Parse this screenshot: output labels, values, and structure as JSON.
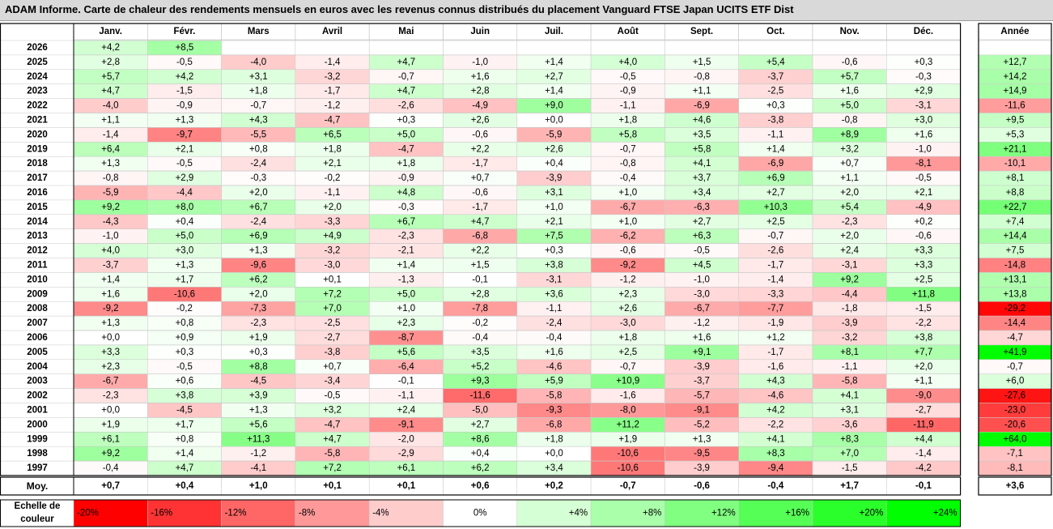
{
  "title": "ADAM Informe. Carte de chaleur des rendements mensuels en euros avec les revenus connus distribués du placement Vanguard FTSE Japan UCITS ETF Dist",
  "chart_data": {
    "type": "heatmap",
    "months": [
      "Janv.",
      "Févr.",
      "Mars",
      "Avril",
      "Mai",
      "Juin",
      "Juil.",
      "Août",
      "Sept.",
      "Oct.",
      "Nov.",
      "Déc."
    ],
    "year_header": "Année",
    "rows": [
      {
        "year": "2026",
        "months": [
          "+4,2",
          "+8,5",
          "",
          "",
          "",
          "",
          "",
          "",
          "",
          "",
          "",
          ""
        ],
        "annual": ""
      },
      {
        "year": "2025",
        "months": [
          "+2,8",
          "-0,5",
          "-4,0",
          "-1,4",
          "+4,7",
          "-1,0",
          "+1,4",
          "+4,0",
          "+1,5",
          "+5,4",
          "-0,6",
          "+0,3"
        ],
        "annual": "+12,7"
      },
      {
        "year": "2024",
        "months": [
          "+5,7",
          "+4,2",
          "+3,1",
          "-3,2",
          "-0,7",
          "+1,6",
          "+2,7",
          "-0,5",
          "-0,8",
          "-3,7",
          "+5,7",
          "-0,3"
        ],
        "annual": "+14,2"
      },
      {
        "year": "2023",
        "months": [
          "+4,7",
          "-1,5",
          "+1,8",
          "-1,7",
          "+4,7",
          "+2,8",
          "+1,4",
          "-0,9",
          "+1,1",
          "-2,5",
          "+1,6",
          "+2,9"
        ],
        "annual": "+14,9"
      },
      {
        "year": "2022",
        "months": [
          "-4,0",
          "-0,9",
          "-0,7",
          "-1,2",
          "-2,6",
          "-4,9",
          "+9,0",
          "-1,1",
          "-6,9",
          "+0,3",
          "+5,0",
          "-3,1"
        ],
        "annual": "-11,6"
      },
      {
        "year": "2021",
        "months": [
          "+1,1",
          "+1,3",
          "+4,3",
          "-4,7",
          "+0,3",
          "+2,6",
          "+0,0",
          "+1,8",
          "+4,6",
          "-3,8",
          "-0,8",
          "+3,0"
        ],
        "annual": "+9,5"
      },
      {
        "year": "2020",
        "months": [
          "-1,4",
          "-9,7",
          "-5,5",
          "+6,5",
          "+5,0",
          "-0,6",
          "-5,9",
          "+5,8",
          "+3,5",
          "-1,1",
          "+8,9",
          "+1,6"
        ],
        "annual": "+5,3"
      },
      {
        "year": "2019",
        "months": [
          "+6,4",
          "+2,1",
          "+0,8",
          "+1,8",
          "-4,7",
          "+2,2",
          "+2,6",
          "-0,7",
          "+5,8",
          "+1,4",
          "+3,2",
          "-1,0"
        ],
        "annual": "+21,1"
      },
      {
        "year": "2018",
        "months": [
          "+1,3",
          "-0,5",
          "-2,4",
          "+2,1",
          "+1,8",
          "-1,7",
          "+0,4",
          "-0,8",
          "+4,1",
          "-6,9",
          "+0,7",
          "-8,1"
        ],
        "annual": "-10,1"
      },
      {
        "year": "2017",
        "months": [
          "-0,8",
          "+2,9",
          "-0,3",
          "-0,2",
          "-0,9",
          "+0,7",
          "-3,9",
          "-0,4",
          "+3,7",
          "+6,9",
          "+1,1",
          "-0,5"
        ],
        "annual": "+8,1"
      },
      {
        "year": "2016",
        "months": [
          "-5,9",
          "-4,4",
          "+2,0",
          "-1,1",
          "+4,8",
          "-0,6",
          "+3,1",
          "+1,0",
          "+3,4",
          "+2,7",
          "+2,0",
          "+2,1"
        ],
        "annual": "+8,8"
      },
      {
        "year": "2015",
        "months": [
          "+9,2",
          "+8,0",
          "+6,7",
          "+2,0",
          "-0,3",
          "-1,7",
          "+1,0",
          "-6,7",
          "-6,3",
          "+10,3",
          "+5,4",
          "-4,9"
        ],
        "annual": "+22,7"
      },
      {
        "year": "2014",
        "months": [
          "-4,3",
          "+0,4",
          "-2,4",
          "-3,3",
          "+6,7",
          "+4,7",
          "+2,1",
          "+1,0",
          "+2,7",
          "+2,5",
          "-2,3",
          "+0,2"
        ],
        "annual": "+7,4"
      },
      {
        "year": "2013",
        "months": [
          "-1,0",
          "+5,0",
          "+6,9",
          "+4,9",
          "-2,3",
          "-6,8",
          "+7,5",
          "-6,2",
          "+6,3",
          "-0,7",
          "+2,0",
          "-0,6"
        ],
        "annual": "+14,4"
      },
      {
        "year": "2012",
        "months": [
          "+4,0",
          "+3,0",
          "+1,3",
          "-3,2",
          "-2,1",
          "+2,2",
          "+0,3",
          "-0,6",
          "-0,5",
          "-2,6",
          "+2,4",
          "+3,3"
        ],
        "annual": "+7,5"
      },
      {
        "year": "2011",
        "months": [
          "-3,7",
          "+1,3",
          "-9,6",
          "-3,0",
          "+1,4",
          "+1,5",
          "+3,8",
          "-9,2",
          "+4,5",
          "-1,7",
          "-3,1",
          "+3,3"
        ],
        "annual": "-14,8"
      },
      {
        "year": "2010",
        "months": [
          "+1,4",
          "+1,7",
          "+6,2",
          "+0,1",
          "-1,3",
          "-0,1",
          "-3,1",
          "-1,2",
          "-1,0",
          "-1,4",
          "+9,2",
          "+2,5"
        ],
        "annual": "+13,1"
      },
      {
        "year": "2009",
        "months": [
          "+1,6",
          "-10,6",
          "+2,0",
          "+7,2",
          "+5,0",
          "+2,8",
          "+3,6",
          "+2,3",
          "-3,0",
          "-3,3",
          "-4,4",
          "+11,8"
        ],
        "annual": "+13,8"
      },
      {
        "year": "2008",
        "months": [
          "-9,2",
          "-0,2",
          "-7,3",
          "+7,0",
          "+1,0",
          "-7,8",
          "-1,1",
          "+2,6",
          "-6,7",
          "-7,7",
          "-1,8",
          "-1,5"
        ],
        "annual": "-29,2"
      },
      {
        "year": "2007",
        "months": [
          "+1,3",
          "+0,8",
          "-2,3",
          "-2,5",
          "+2,3",
          "-0,2",
          "-2,4",
          "-3,0",
          "-1,2",
          "-1,9",
          "-3,9",
          "-2,2"
        ],
        "annual": "-14,4"
      },
      {
        "year": "2006",
        "months": [
          "+0,0",
          "+0,9",
          "+1,9",
          "-2,7",
          "-8,7",
          "-0,4",
          "-0,4",
          "+1,8",
          "+1,6",
          "+1,2",
          "-3,2",
          "+3,8"
        ],
        "annual": "-4,7"
      },
      {
        "year": "2005",
        "months": [
          "+3,3",
          "+0,3",
          "+0,3",
          "-3,8",
          "+5,6",
          "+3,5",
          "+1,6",
          "+2,5",
          "+9,1",
          "-1,7",
          "+8,1",
          "+7,7"
        ],
        "annual": "+41,9"
      },
      {
        "year": "2004",
        "months": [
          "+2,3",
          "-0,5",
          "+8,8",
          "+0,7",
          "-6,4",
          "+5,2",
          "-4,6",
          "-0,7",
          "-3,9",
          "-1,6",
          "-1,1",
          "+2,0"
        ],
        "annual": "-0,7"
      },
      {
        "year": "2003",
        "months": [
          "-6,7",
          "+0,6",
          "-4,5",
          "-3,4",
          "-0,1",
          "+9,3",
          "+5,9",
          "+10,9",
          "-3,7",
          "+4,3",
          "-5,8",
          "+1,1"
        ],
        "annual": "+6,0"
      },
      {
        "year": "2002",
        "months": [
          "-2,3",
          "+3,8",
          "+3,9",
          "-0,5",
          "-1,1",
          "-11,6",
          "-5,8",
          "-1,6",
          "-5,7",
          "-4,6",
          "+4,1",
          "-9,0"
        ],
        "annual": "-27,6"
      },
      {
        "year": "2001",
        "months": [
          "+0,0",
          "-4,5",
          "+1,3",
          "+3,2",
          "+2,4",
          "-5,0",
          "-9,3",
          "-8,0",
          "-9,1",
          "+4,2",
          "+3,1",
          "-2,7"
        ],
        "annual": "-23,0"
      },
      {
        "year": "2000",
        "months": [
          "+1,9",
          "+1,7",
          "+5,6",
          "-4,7",
          "-9,1",
          "+2,7",
          "-6,8",
          "+11,2",
          "-5,2",
          "-2,2",
          "-3,6",
          "-11,9"
        ],
        "annual": "-20,6"
      },
      {
        "year": "1999",
        "months": [
          "+6,1",
          "+0,8",
          "+11,3",
          "+4,7",
          "-2,0",
          "+8,6",
          "+1,8",
          "+1,9",
          "+1,3",
          "+4,1",
          "+8,3",
          "+4,4"
        ],
        "annual": "+64,0"
      },
      {
        "year": "1998",
        "months": [
          "+9,2",
          "+1,4",
          "-1,2",
          "-5,8",
          "-2,9",
          "+0,4",
          "+0,0",
          "-10,6",
          "-9,5",
          "+8,3",
          "+7,0",
          "-1,4"
        ],
        "annual": "-7,1"
      },
      {
        "year": "1997",
        "months": [
          "-0,4",
          "+4,7",
          "-4,1",
          "+7,2",
          "+6,1",
          "+6,2",
          "+3,4",
          "-10,6",
          "-3,9",
          "-9,4",
          "-1,5",
          "-4,2"
        ],
        "annual": "-8,1"
      }
    ],
    "average": {
      "label": "Moy.",
      "months": [
        "+0,7",
        "+0,4",
        "+1,0",
        "+0,1",
        "+0,1",
        "+0,6",
        "+0,2",
        "-0,7",
        "-0,6",
        "-0,4",
        "+1,7",
        "-0,1"
      ],
      "annual": "+3,6"
    },
    "scale": {
      "label": "Echelle de couleur",
      "stops": [
        "-20%",
        "-16%",
        "-12%",
        "-8%",
        "-4%",
        "0%",
        "+4%",
        "+8%",
        "+12%",
        "+16%",
        "+20%",
        "+24%"
      ],
      "values": [
        -20,
        -16,
        -12,
        -8,
        -4,
        0,
        4,
        8,
        12,
        16,
        20,
        24
      ]
    },
    "colors": {
      "negative": "#ff0000",
      "neutral": "#ffffff",
      "positive": "#00ff00"
    }
  }
}
